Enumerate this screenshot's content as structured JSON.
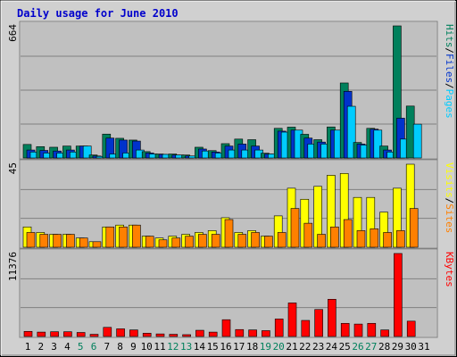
{
  "chart_data": [
    {
      "type": "bar",
      "title": "Daily usage for June 2010",
      "ymax_label": "664",
      "ylim": [
        0,
        664
      ],
      "grid": true,
      "legend": [
        {
          "label": "Pages",
          "color": "#00ccff"
        },
        {
          "label": "Files",
          "color": "#0033cc"
        },
        {
          "label": "Hits",
          "color": "#00805c"
        }
      ],
      "legend_separator": "/",
      "categories": [
        "1",
        "2",
        "3",
        "4",
        "5",
        "6",
        "7",
        "8",
        "9",
        "10",
        "11",
        "12",
        "13",
        "14",
        "15",
        "16",
        "17",
        "18",
        "19",
        "20",
        "21",
        "22",
        "23",
        "24",
        "25",
        "26",
        "27",
        "28",
        "29",
        "30",
        "31"
      ],
      "weekend_days": [
        "5",
        "6",
        "12",
        "13",
        "19",
        "20",
        "26",
        "27"
      ],
      "colors": {
        "weekday": "#000000",
        "weekend": "#00805c"
      },
      "series": [
        {
          "name": "Hits",
          "color": "#00805c",
          "values": [
            68,
            57,
            54,
            60,
            60,
            15,
            120,
            99,
            90,
            32,
            20,
            20,
            15,
            54,
            37,
            72,
            95,
            92,
            24,
            149,
            155,
            119,
            92,
            156,
            377,
            78,
            149,
            60,
            664,
            261,
            0
          ]
        },
        {
          "name": "Files",
          "color": "#0033cc",
          "values": [
            40,
            38,
            35,
            40,
            60,
            10,
            100,
            90,
            85,
            25,
            18,
            15,
            10,
            45,
            30,
            60,
            70,
            60,
            20,
            135,
            140,
            100,
            80,
            140,
            335,
            70,
            145,
            40,
            200,
            0,
            0
          ]
        },
        {
          "name": "Pages",
          "color": "#00ccff",
          "values": [
            30,
            25,
            25,
            30,
            60,
            8,
            20,
            25,
            40,
            20,
            18,
            15,
            10,
            35,
            25,
            40,
            40,
            40,
            20,
            130,
            140,
            70,
            70,
            140,
            260,
            65,
            140,
            30,
            95,
            170,
            0
          ]
        }
      ]
    },
    {
      "type": "bar",
      "ymax_label": "45",
      "ylim": [
        0,
        45
      ],
      "grid": true,
      "legend": [
        {
          "label": "Sites",
          "color": "#ff8000"
        },
        {
          "label": "Visits",
          "color": "#ffff00"
        }
      ],
      "legend_separator": "/",
      "series": [
        {
          "name": "Visits",
          "color": "#ffff00",
          "values": [
            11,
            8,
            7,
            7,
            5,
            3,
            11,
            12,
            12,
            6,
            5,
            6,
            7,
            8,
            9,
            16,
            8,
            9,
            6,
            17,
            32,
            26,
            33,
            39,
            40,
            27,
            27,
            19,
            32,
            45,
            0
          ]
        },
        {
          "name": "Sites",
          "color": "#ff8000",
          "values": [
            8,
            7,
            7,
            7,
            5,
            3,
            11,
            11,
            12,
            6,
            4,
            5,
            6,
            7,
            7,
            15,
            7,
            8,
            6,
            8,
            21,
            13,
            7,
            11,
            15,
            9,
            10,
            8,
            9,
            21,
            0
          ]
        }
      ]
    },
    {
      "type": "bar",
      "ymax_label": "11376",
      "ylim": [
        0,
        11376
      ],
      "grid": true,
      "legend": [
        {
          "label": "KBytes",
          "color": "#ff0000"
        }
      ],
      "series": [
        {
          "name": "KBytes",
          "color": "#ff0000",
          "values": [
            700,
            600,
            650,
            650,
            550,
            300,
            1250,
            1050,
            900,
            450,
            350,
            300,
            250,
            850,
            600,
            2300,
            950,
            900,
            800,
            2400,
            4600,
            2200,
            3700,
            5100,
            1800,
            1700,
            1800,
            900,
            11376,
            2100,
            0
          ]
        }
      ]
    }
  ]
}
